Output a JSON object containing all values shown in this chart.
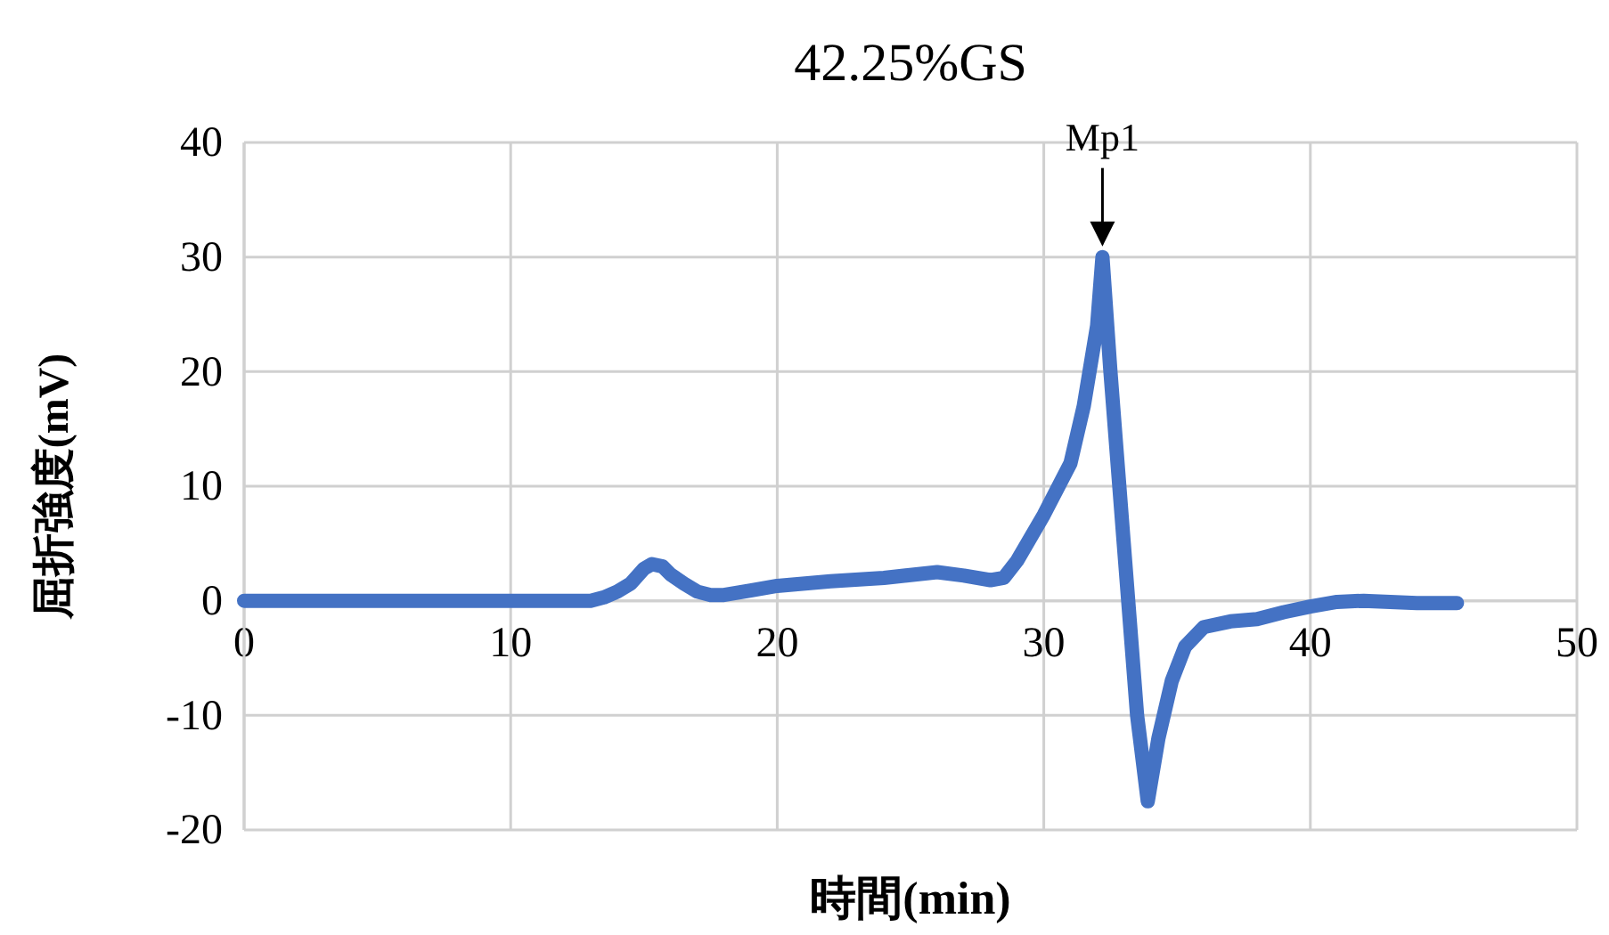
{
  "chart_data": {
    "type": "line",
    "title": "42.25%GS",
    "xlabel": "時間(min)",
    "ylabel": "屈折強度(mV)",
    "xlim": [
      0,
      50
    ],
    "ylim": [
      -20,
      40
    ],
    "xticks": [
      0,
      10,
      20,
      30,
      40,
      50
    ],
    "yticks": [
      -20,
      -10,
      0,
      10,
      20,
      30,
      40
    ],
    "grid": true,
    "marker": "none",
    "line_style": "solid",
    "annotations": [
      {
        "text": "Mp1",
        "x": 32.2,
        "y": 30
      }
    ],
    "series": [
      {
        "color": "#4472c4",
        "x": [
          0,
          5,
          10,
          13,
          13.5,
          14,
          14.5,
          15,
          15.3,
          15.7,
          16,
          16.5,
          17,
          17.5,
          18,
          19,
          20,
          22,
          24,
          26,
          27,
          28,
          28.5,
          29,
          30,
          31,
          31.5,
          32,
          32.2,
          32.5,
          33,
          33.5,
          33.9,
          34.3,
          34.8,
          35.3,
          36,
          37,
          38,
          39,
          40,
          41,
          42,
          44,
          45.5
        ],
        "values": [
          0,
          0,
          0,
          0,
          0.3,
          0.8,
          1.5,
          2.8,
          3.2,
          3,
          2.3,
          1.5,
          0.8,
          0.5,
          0.5,
          0.9,
          1.3,
          1.7,
          2,
          2.5,
          2.2,
          1.8,
          2,
          3.5,
          7.5,
          12,
          17,
          24,
          30,
          20,
          5,
          -10,
          -17.5,
          -12,
          -7,
          -4,
          -2.3,
          -1.8,
          -1.6,
          -1,
          -0.5,
          -0.1,
          0,
          -0.2,
          -0.2
        ]
      }
    ]
  }
}
